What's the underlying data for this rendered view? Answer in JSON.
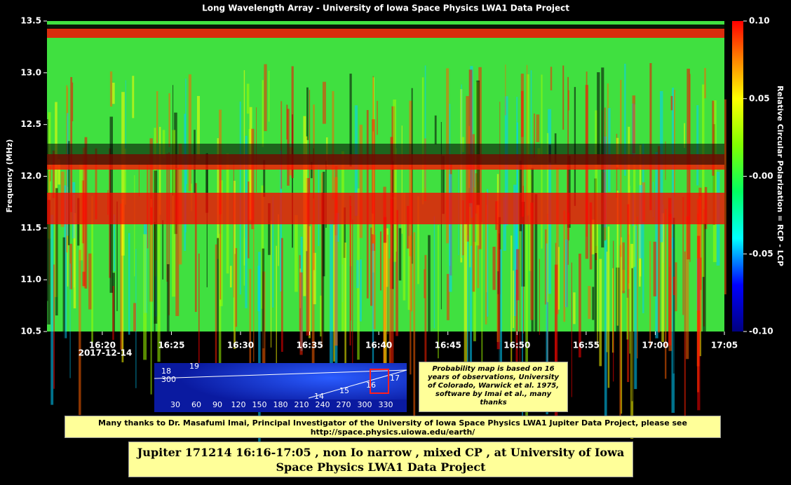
{
  "chart_data": {
    "type": "heatmap",
    "title": "Long Wavelength Array - University of Iowa Space Physics LWA1 Data Project",
    "y_label": "Frequency (MHz)",
    "ylim": [
      10.5,
      13.5
    ],
    "yticks": [
      10.5,
      {
        "value": 11,
        "label": "11.0"
      },
      11.5,
      {
        "value": 12,
        "label": "12.0"
      },
      12.5,
      {
        "value": 13,
        "label": "13.0"
      },
      13.5
    ],
    "xlim": [
      "16:16",
      "17:05"
    ],
    "xticks": [
      "16:20",
      "16:25",
      "16:30",
      "16:35",
      "16:40",
      "16:45",
      "16:50",
      "16:55",
      "17:00",
      "17:05"
    ],
    "x_date": "2017-12-14",
    "colorbar_label": "Relative Circular Polarization = RCP - LCP",
    "clim": [
      {
        "value": -0.1,
        "label": "-0.10"
      },
      {
        "value": 0.1,
        "label": "0.10"
      }
    ],
    "cticks": [
      {
        "value": 0.1,
        "label": "0.10"
      },
      0.05,
      {
        "value": 0,
        "label": "-0.00"
      },
      -0.05,
      {
        "value": -0.1,
        "label": "-0.10"
      }
    ]
  },
  "probability_map": {
    "xticks": [
      30,
      60,
      90,
      120,
      150,
      180,
      210,
      240,
      270,
      300,
      330
    ],
    "orbit_labels": [
      "19",
      "18",
      "300",
      "17",
      "16",
      "15",
      "14"
    ]
  },
  "notes": {
    "probability": "Probability map is based on 16 years of observations, University of Colorado, Warwick et al. 1975, software by Imai et al., many thanks",
    "thanks": "Many thanks to Dr. Masafumi Imai, Principal Investigator of the University of Iowa Space Physics LWA1 Jupiter Data Project, please see http://space.physics.uiowa.edu/earth/",
    "caption": "Jupiter 171214 16:16-17:05 , non Io narrow , mixed CP , at University of Iowa Space Physics LWA1 Data Project"
  }
}
